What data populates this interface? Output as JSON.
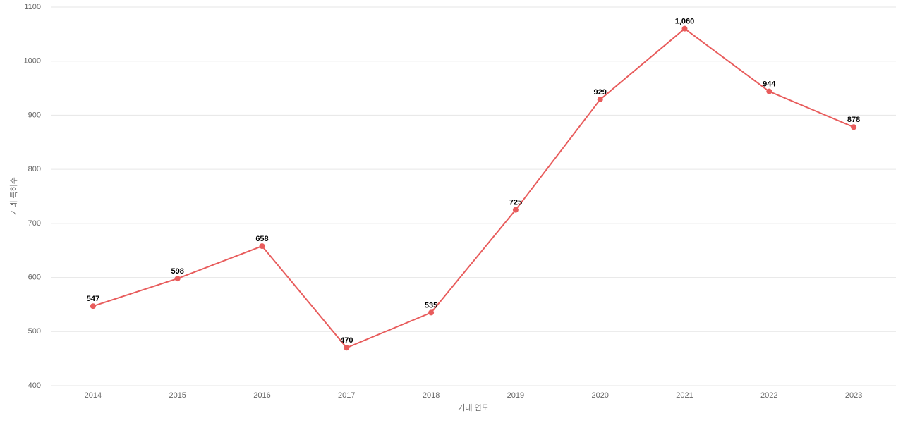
{
  "chart_data": {
    "type": "line",
    "x_label": "거래 연도",
    "y_label": "거래 특허수",
    "categories": [
      "2014",
      "2015",
      "2016",
      "2017",
      "2018",
      "2019",
      "2020",
      "2021",
      "2022",
      "2023"
    ],
    "series": [
      {
        "color": "#e85c5c",
        "values": [
          547,
          598,
          658,
          470,
          535,
          725,
          929,
          1060,
          944,
          878
        ],
        "value_labels": [
          "547",
          "598",
          "658",
          "470",
          "535",
          "725",
          "929",
          "1,060",
          "944",
          "878"
        ]
      }
    ],
    "ylim": [
      400,
      1100
    ],
    "yticks": [
      400,
      500,
      600,
      700,
      800,
      900,
      1000,
      1100
    ],
    "grid": true
  }
}
